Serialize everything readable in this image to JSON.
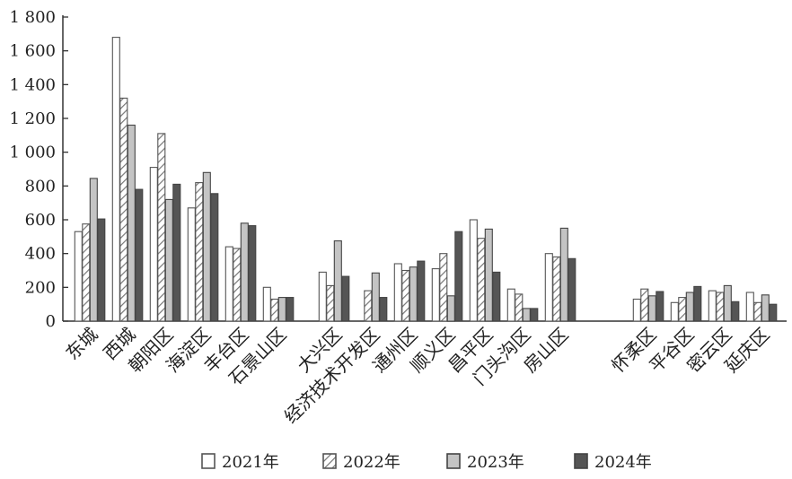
{
  "chart_data": {
    "type": "bar",
    "ylim": [
      0,
      1800
    ],
    "yticks": [
      0,
      200,
      400,
      600,
      800,
      1000,
      1200,
      1400,
      1600,
      1800
    ],
    "ytick_labels": [
      "0",
      "200",
      "400",
      "600",
      "800",
      "1 000",
      "1 200",
      "1 400",
      "1 600",
      "1 800"
    ],
    "grid": false,
    "legend_position": "bottom",
    "groups": [
      [
        "东城",
        "西城",
        "朝阳区",
        "海淀区",
        "丰台区",
        "石景山区"
      ],
      [
        "大兴区",
        "经济技术开发区",
        "通州区",
        "顺义区",
        "昌平区",
        "门头沟区",
        "房山区"
      ],
      [
        "怀柔区",
        "平谷区",
        "密云区",
        "延庆区"
      ]
    ],
    "categories": [
      "东城",
      "西城",
      "朝阳区",
      "海淀区",
      "丰台区",
      "石景山区",
      "大兴区",
      "经济技术开发区",
      "通州区",
      "顺义区",
      "昌平区",
      "门头沟区",
      "房山区",
      "怀柔区",
      "平谷区",
      "密云区",
      "延庆区"
    ],
    "series": [
      {
        "name": "2021年",
        "style": "white",
        "values": [
          530,
          1680,
          910,
          670,
          440,
          200,
          290,
          0,
          340,
          310,
          600,
          190,
          400,
          130,
          110,
          180,
          170
        ]
      },
      {
        "name": "2022年",
        "style": "hatched",
        "values": [
          575,
          1320,
          1110,
          820,
          430,
          130,
          210,
          180,
          300,
          400,
          490,
          160,
          380,
          190,
          140,
          170,
          110
        ]
      },
      {
        "name": "2023年",
        "style": "light-gray",
        "values": [
          845,
          1160,
          720,
          880,
          580,
          140,
          475,
          285,
          320,
          150,
          545,
          75,
          550,
          150,
          170,
          210,
          155
        ]
      },
      {
        "name": "2024年",
        "style": "dark-gray",
        "values": [
          605,
          780,
          810,
          755,
          565,
          140,
          265,
          140,
          355,
          530,
          290,
          75,
          370,
          175,
          205,
          115,
          100
        ]
      }
    ]
  }
}
